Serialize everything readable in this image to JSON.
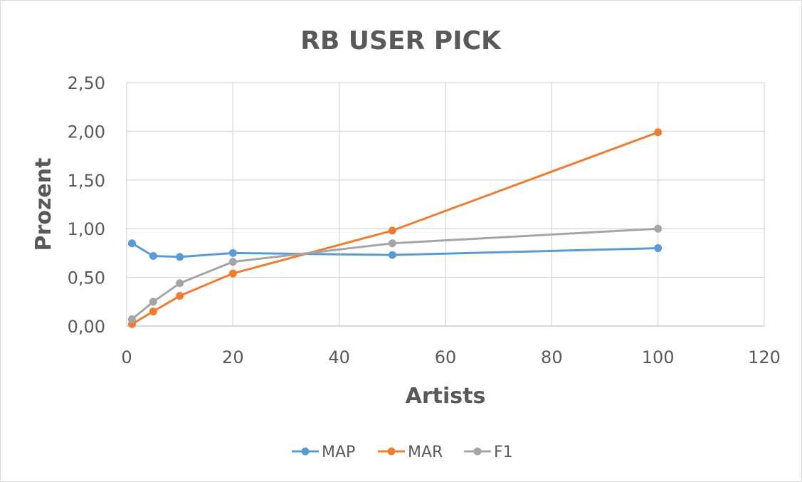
{
  "chart_data": {
    "type": "scatter",
    "title": "RB USER PICK",
    "xlabel": "Artists",
    "ylabel": "Prozent",
    "xlim": [
      0,
      120
    ],
    "ylim": [
      0,
      2.5
    ],
    "x_ticks": [
      "0",
      "20",
      "40",
      "60",
      "80",
      "100",
      "120"
    ],
    "y_ticks": [
      "0,00",
      "0,50",
      "1,00",
      "1,50",
      "2,00",
      "2,50"
    ],
    "grid": true,
    "legend_position": "bottom",
    "series": [
      {
        "name": "MAP",
        "color": "#5b9bd5",
        "x": [
          1,
          5,
          10,
          20,
          50,
          100
        ],
        "y": [
          0.85,
          0.72,
          0.71,
          0.75,
          0.73,
          0.8
        ]
      },
      {
        "name": "MAR",
        "color": "#ed7d31",
        "x": [
          1,
          5,
          10,
          20,
          50,
          100
        ],
        "y": [
          0.02,
          0.15,
          0.31,
          0.54,
          0.98,
          1.99
        ]
      },
      {
        "name": "F1",
        "color": "#a5a5a5",
        "x": [
          1,
          5,
          10,
          20,
          50,
          100
        ],
        "y": [
          0.07,
          0.25,
          0.44,
          0.66,
          0.85,
          1.0
        ]
      }
    ]
  }
}
